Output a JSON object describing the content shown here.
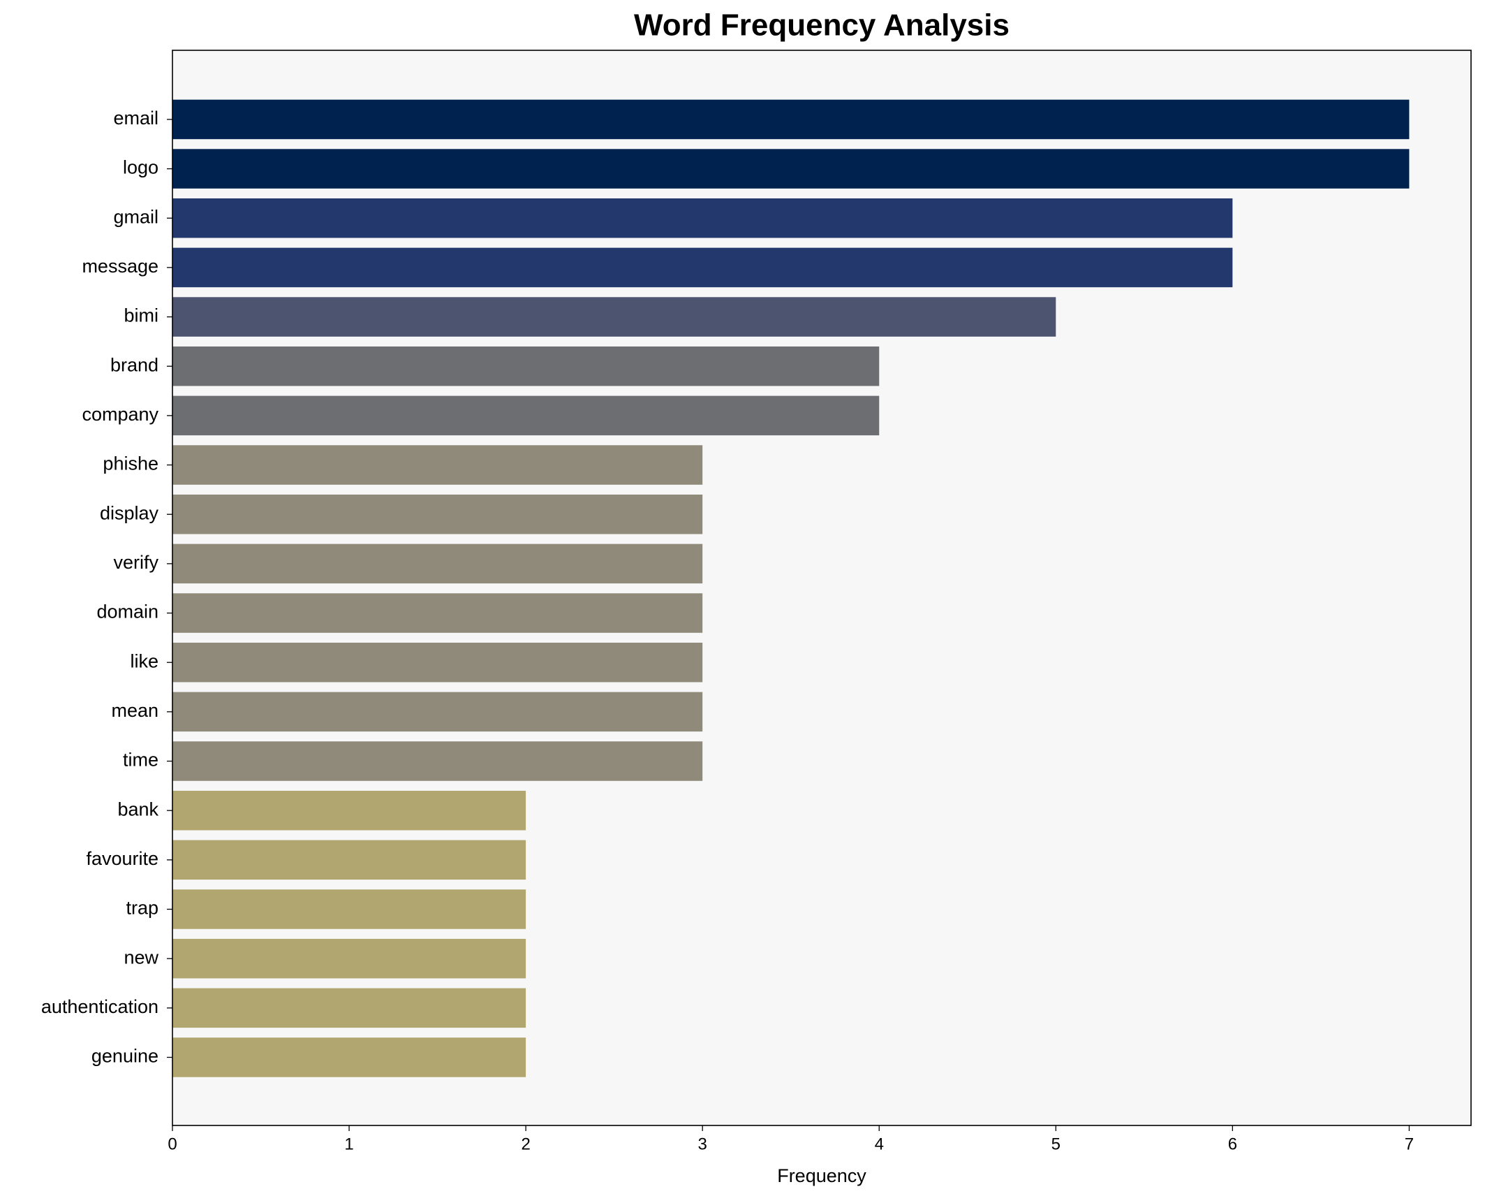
{
  "chart_data": {
    "type": "barh",
    "title": "Word Frequency Analysis",
    "x_label": "Frequency",
    "categories": [
      "email",
      "logo",
      "gmail",
      "message",
      "bimi",
      "brand",
      "company",
      "phishe",
      "display",
      "verify",
      "domain",
      "like",
      "mean",
      "time",
      "bank",
      "favourite",
      "trap",
      "new",
      "authentication",
      "genuine"
    ],
    "values": [
      7,
      7,
      6,
      6,
      5,
      4,
      4,
      3,
      3,
      3,
      3,
      3,
      3,
      3,
      2,
      2,
      2,
      2,
      2,
      2
    ],
    "colors": [
      "#00224e",
      "#00224e",
      "#23386d",
      "#23386d",
      "#4d5470",
      "#6d6e72",
      "#6d6e72",
      "#8f8a79",
      "#8f8a79",
      "#8f8a79",
      "#8f8a79",
      "#8f8a79",
      "#8f8a79",
      "#8f8a79",
      "#b1a570",
      "#b1a570",
      "#b1a570",
      "#b1a570",
      "#b1a570",
      "#b1a570"
    ],
    "xlim": [
      0,
      7.35
    ],
    "xticks": [
      0,
      1,
      2,
      3,
      4,
      5,
      6,
      7
    ],
    "grid": false
  }
}
